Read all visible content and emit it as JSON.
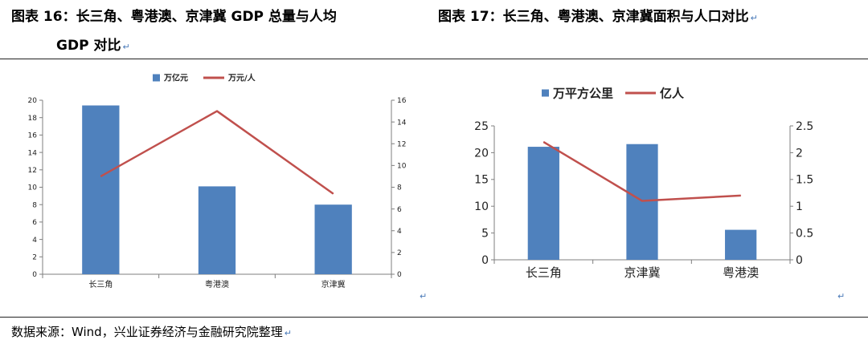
{
  "header": {
    "left_title_line1": "图表 16：长三角、粤港澳、京津冀 GDP 总量与人均",
    "left_title_line2": "GDP 对比",
    "right_title": "图表 17：长三角、粤港澳、京津冀面积与人口对比",
    "return_mark": "↵"
  },
  "chart_data": [
    {
      "type": "bar",
      "categories": [
        "长三角",
        "粤港澳",
        "京津冀"
      ],
      "series": [
        {
          "name": "万亿元",
          "kind": "bar",
          "axis": "left",
          "values": [
            19.4,
            10.1,
            8.0
          ],
          "color": "#4f81bd"
        },
        {
          "name": "万元/人",
          "kind": "line",
          "axis": "right",
          "values": [
            9.0,
            15.0,
            7.4
          ],
          "color": "#c0504d"
        }
      ],
      "y_left": {
        "min": 0,
        "max": 20,
        "step": 2,
        "ticks": [
          "0",
          "2",
          "4",
          "6",
          "8",
          "10",
          "12",
          "14",
          "16",
          "18",
          "20"
        ]
      },
      "y_right": {
        "min": 0,
        "max": 16,
        "step": 2,
        "ticks": [
          "0",
          "2",
          "4",
          "6",
          "8",
          "10",
          "12",
          "14",
          "16"
        ]
      },
      "legend": "top",
      "grid": false
    },
    {
      "type": "bar",
      "categories": [
        "长三角",
        "京津冀",
        "粤港澳"
      ],
      "series": [
        {
          "name": "万平方公里",
          "kind": "bar",
          "axis": "left",
          "values": [
            21.1,
            21.6,
            5.6
          ],
          "color": "#4f81bd"
        },
        {
          "name": "亿人",
          "kind": "line",
          "axis": "right",
          "values": [
            2.2,
            1.1,
            1.2
          ],
          "color": "#c0504d"
        }
      ],
      "y_left": {
        "min": 0,
        "max": 25,
        "step": 5,
        "ticks": [
          "0",
          "5",
          "10",
          "15",
          "20",
          "25"
        ]
      },
      "y_right": {
        "min": 0,
        "max": 2.5,
        "step": 0.5,
        "ticks": [
          "0",
          "0.5",
          "1",
          "1.5",
          "2",
          "2.5"
        ]
      },
      "legend": "top",
      "grid": false
    }
  ],
  "footer": {
    "source": "数据来源：Wind，兴业证券经济与金融研究院整理"
  }
}
